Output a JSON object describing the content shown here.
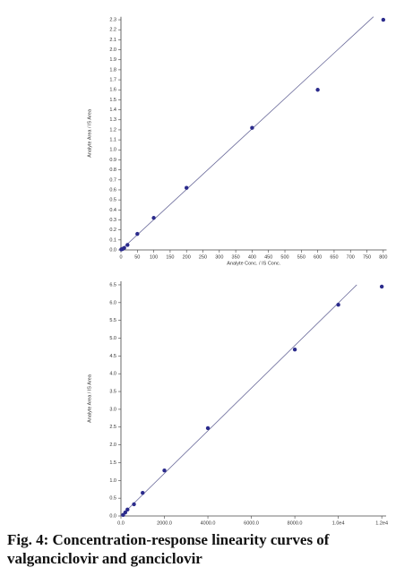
{
  "chart_data": [
    {
      "type": "scatter",
      "xlabel": "Analyte Conc. / IS Conc.",
      "ylabel": "Analyte Area / IS Area",
      "color": "#2b2b8c",
      "x": [
        1,
        5,
        10,
        20,
        50,
        100,
        200,
        400,
        600,
        800
      ],
      "values": [
        0.005,
        0.01,
        0.02,
        0.05,
        0.16,
        0.32,
        0.62,
        1.22,
        1.6,
        2.3
      ],
      "fit_line": {
        "x": [
          0,
          770
        ],
        "y": [
          0,
          2.33
        ]
      },
      "xlim": [
        0,
        810
      ],
      "ylim": [
        0,
        2.33
      ],
      "xticks": [
        0,
        50,
        100,
        150,
        200,
        250,
        300,
        350,
        400,
        450,
        500,
        550,
        600,
        650,
        700,
        750,
        800
      ],
      "yticks": [
        {
          "value": 0,
          "label": "0.0"
        },
        0.1,
        0.2,
        0.3,
        0.4,
        0.5,
        0.6,
        0.7,
        0.8,
        0.9,
        {
          "value": 1,
          "label": "1.0"
        },
        1.1,
        1.2,
        1.3,
        1.4,
        1.5,
        1.6,
        1.7,
        1.8,
        1.9,
        {
          "value": 2,
          "label": "2.0"
        },
        2.1,
        2.2,
        2.3
      ]
    },
    {
      "type": "scatter",
      "ylabel": "Analyte Area / IS Area",
      "color": "#2b2b8c",
      "x": [
        100,
        200,
        300,
        600,
        1000,
        2000,
        4000,
        8000,
        10000,
        12000
      ],
      "values": [
        0.03,
        0.1,
        0.18,
        0.33,
        0.65,
        1.28,
        2.47,
        4.68,
        5.94,
        6.45
      ],
      "fit_line": {
        "x": [
          0,
          10850
        ],
        "y": [
          0,
          6.5
        ]
      },
      "xlim": [
        0,
        12200
      ],
      "ylim": [
        0,
        6.6
      ],
      "xticks": [
        {
          "value": 0,
          "label": "0.0"
        },
        {
          "value": 2000,
          "label": "2000.0"
        },
        {
          "value": 4000,
          "label": "4000.0"
        },
        {
          "value": 6000,
          "label": "6000.0"
        },
        {
          "value": 8000,
          "label": "8000.0"
        },
        {
          "value": 10000,
          "label": "1.0e4"
        },
        {
          "value": 12000,
          "label": "1.2e4"
        }
      ],
      "yticks": [
        {
          "value": 0,
          "label": "0.0"
        },
        0.5,
        {
          "value": 1,
          "label": "1.0"
        },
        1.5,
        {
          "value": 2,
          "label": "2.0"
        },
        2.5,
        {
          "value": 3,
          "label": "3.0"
        },
        3.5,
        {
          "value": 4,
          "label": "4.0"
        },
        4.5,
        {
          "value": 5,
          "label": "5.0"
        },
        5.5,
        {
          "value": 6,
          "label": "6.0"
        },
        6.5
      ]
    }
  ],
  "caption": "Fig. 4: Concentration-response linearity curves of valganciclovir and ganciclovir"
}
